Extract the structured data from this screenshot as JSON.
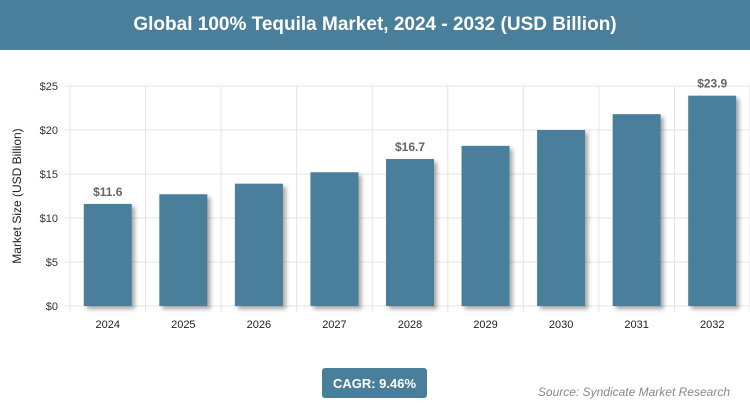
{
  "header": {
    "title": "Global 100% Tequila Market, 2024 - 2032 (USD Billion)"
  },
  "chart_data": {
    "type": "bar",
    "title": "Global 100% Tequila Market, 2024 - 2032 (USD Billion)",
    "xlabel": "",
    "ylabel": "Market Size (USD Billion)",
    "categories": [
      "2024",
      "2025",
      "2026",
      "2027",
      "2028",
      "2029",
      "2030",
      "2031",
      "2032"
    ],
    "values": [
      11.6,
      12.7,
      13.9,
      15.2,
      16.7,
      18.2,
      20.0,
      21.8,
      23.9
    ],
    "data_labels": {
      "0": "$11.6",
      "4": "$16.7",
      "8": "$23.9"
    },
    "ylim": [
      0,
      25
    ],
    "yticks": [
      0,
      5,
      10,
      15,
      20,
      25
    ],
    "ytick_labels": [
      "$0",
      "$5",
      "$10",
      "$15",
      "$20",
      "$25"
    ],
    "grid": true,
    "bar_color": "#4a7f9b"
  },
  "footer": {
    "cagr": "CAGR: 9.46%",
    "source": "Source: Syndicate Market Research"
  }
}
